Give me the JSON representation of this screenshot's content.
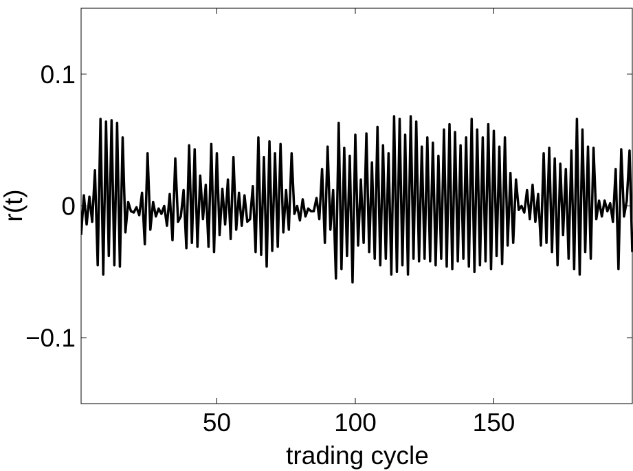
{
  "chart_data": {
    "type": "line",
    "x_label": "trading cycle",
    "y_label": "r(t)",
    "x": [
      1,
      2,
      3,
      4,
      5,
      6,
      7,
      8,
      9,
      10,
      11,
      12,
      13,
      14,
      15,
      16,
      17,
      18,
      19,
      20,
      21,
      22,
      23,
      24,
      25,
      26,
      27,
      28,
      29,
      30,
      31,
      32,
      33,
      34,
      35,
      36,
      37,
      38,
      39,
      40,
      41,
      42,
      43,
      44,
      45,
      46,
      47,
      48,
      49,
      50,
      51,
      52,
      53,
      54,
      55,
      56,
      57,
      58,
      59,
      60,
      61,
      62,
      63,
      64,
      65,
      66,
      67,
      68,
      69,
      70,
      71,
      72,
      73,
      74,
      75,
      76,
      77,
      78,
      79,
      80,
      81,
      82,
      83,
      84,
      85,
      86,
      87,
      88,
      89,
      90,
      91,
      92,
      93,
      94,
      95,
      96,
      97,
      98,
      99,
      100,
      101,
      102,
      103,
      104,
      105,
      106,
      107,
      108,
      109,
      110,
      111,
      112,
      113,
      114,
      115,
      116,
      117,
      118,
      119,
      120,
      121,
      122,
      123,
      124,
      125,
      126,
      127,
      128,
      129,
      130,
      131,
      132,
      133,
      134,
      135,
      136,
      137,
      138,
      139,
      140,
      141,
      142,
      143,
      144,
      145,
      146,
      147,
      148,
      149,
      150,
      151,
      152,
      153,
      154,
      155,
      156,
      157,
      158,
      159,
      160,
      161,
      162,
      163,
      164,
      165,
      166,
      167,
      168,
      169,
      170,
      171,
      172,
      173,
      174,
      175,
      176,
      177,
      178,
      179,
      180,
      181,
      182,
      183,
      184,
      185,
      186,
      187,
      188,
      189,
      190,
      191,
      192,
      193,
      194,
      195,
      196,
      197,
      198,
      199,
      200
    ],
    "series": [
      {
        "color": "#000000",
        "values": [
          -0.022,
          0.008,
          -0.014,
          0.007,
          -0.012,
          0.027,
          -0.045,
          0.066,
          -0.052,
          0.064,
          -0.038,
          0.065,
          -0.045,
          0.063,
          -0.046,
          0.052,
          -0.02,
          0.003,
          -0.004,
          -0.005,
          -0.001,
          -0.007,
          0.01,
          -0.029,
          0.04,
          -0.018,
          0.003,
          -0.008,
          -0.002,
          -0.006,
          0.0,
          -0.015,
          0.009,
          -0.026,
          0.036,
          -0.012,
          -0.008,
          0.012,
          -0.032,
          0.046,
          -0.028,
          0.043,
          -0.031,
          0.023,
          -0.01,
          0.016,
          -0.031,
          0.047,
          -0.035,
          0.04,
          -0.022,
          0.013,
          -0.014,
          0.02,
          -0.025,
          0.037,
          -0.018,
          0.01,
          -0.015,
          0.008,
          -0.012,
          -0.01,
          0.015,
          -0.035,
          0.052,
          -0.037,
          0.037,
          -0.046,
          0.049,
          -0.034,
          0.04,
          -0.031,
          0.047,
          -0.02,
          0.012,
          -0.018,
          0.04,
          -0.006,
          0.0,
          -0.011,
          0.005,
          -0.008,
          -0.002,
          -0.004,
          -0.004,
          0.006,
          -0.01,
          0.028,
          -0.028,
          0.045,
          -0.018,
          0.012,
          -0.055,
          0.063,
          -0.048,
          0.044,
          -0.038,
          0.038,
          -0.058,
          0.054,
          -0.03,
          0.02,
          -0.028,
          0.055,
          -0.035,
          0.033,
          -0.04,
          0.06,
          -0.045,
          0.046,
          -0.04,
          0.04,
          -0.052,
          0.068,
          -0.05,
          0.066,
          -0.045,
          0.054,
          -0.052,
          0.068,
          -0.04,
          0.064,
          -0.042,
          0.045,
          -0.04,
          0.052,
          -0.042,
          0.048,
          -0.045,
          0.038,
          -0.04,
          0.058,
          -0.046,
          0.062,
          -0.048,
          0.056,
          -0.042,
          0.046,
          -0.04,
          0.052,
          -0.046,
          0.066,
          -0.05,
          0.058,
          -0.045,
          0.052,
          -0.042,
          0.062,
          -0.048,
          0.057,
          -0.038,
          0.045,
          -0.044,
          0.052,
          -0.03,
          0.025,
          -0.028,
          0.02,
          -0.003,
          0.0,
          -0.005,
          0.012,
          -0.01,
          0.016,
          -0.012,
          0.009,
          -0.03,
          0.04,
          -0.028,
          0.044,
          -0.035,
          0.036,
          -0.045,
          0.032,
          -0.022,
          0.028,
          -0.04,
          0.042,
          -0.048,
          0.066,
          -0.052,
          0.058,
          -0.035,
          0.045,
          -0.04,
          0.044,
          -0.01,
          0.004,
          -0.008,
          0.004,
          -0.004,
          0.002,
          -0.012,
          0.028,
          -0.048,
          0.043,
          -0.008,
          0.004,
          0.042,
          -0.035
        ]
      }
    ],
    "xlim": [
      1,
      200
    ],
    "xticks": [
      50,
      100,
      150
    ],
    "ylim": [
      -0.15,
      0.15
    ],
    "yticks": [
      {
        "value": -0.1,
        "label": "−0.1"
      },
      0,
      0.1
    ],
    "grid": false
  }
}
